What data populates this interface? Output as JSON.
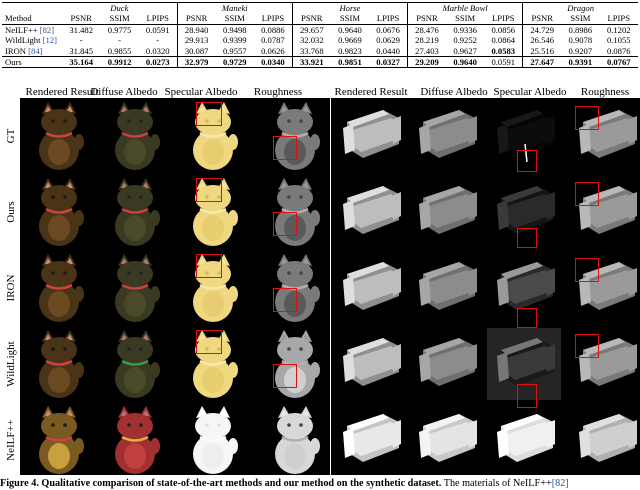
{
  "table": {
    "method_header": "Method",
    "scenes": [
      "Duck",
      "Maneki",
      "Horse",
      "Marble Bowl",
      "Dragon"
    ],
    "metrics": [
      "PSNR",
      "SSIM",
      "LPIPS"
    ],
    "rows": [
      {
        "method": "NeILF++",
        "ref": "[82]",
        "values": [
          "31.482",
          "0.9775",
          "0.0591",
          "28.940",
          "0.9498",
          "0.0886",
          "29.657",
          "0.9640",
          "0.0676",
          "28.476",
          "0.9336",
          "0.0856",
          "24.729",
          "0.8986",
          "0.1202"
        ]
      },
      {
        "method": "WildLight",
        "ref": "[12]",
        "values": [
          "-",
          "-",
          "-",
          "29.913",
          "0.9399",
          "0.0787",
          "32.032",
          "0.9669",
          "0.0629",
          "28.219",
          "0.9252",
          "0.0864",
          "26.546",
          "0.9078",
          "0.1055"
        ]
      },
      {
        "method": "IRON",
        "ref": "[84]",
        "values": [
          "31.845",
          "0.9855",
          "0.0320",
          "30.087",
          "0.9557",
          "0.0626",
          "33.768",
          "0.9823",
          "0.0440",
          "27.403",
          "0.9627",
          "0.0583",
          "25.516",
          "0.9207",
          "0.0876"
        ]
      },
      {
        "method": "Ours",
        "ref": "",
        "values": [
          "35.164",
          "0.9912",
          "0.0273",
          "32.979",
          "0.9729",
          "0.0340",
          "33.921",
          "0.9851",
          "0.0327",
          "29.209",
          "0.9640",
          "0.0591",
          "27.647",
          "0.9391",
          "0.0767"
        ]
      }
    ],
    "bold": [
      [
        3,
        0
      ],
      [
        3,
        1
      ],
      [
        3,
        2
      ],
      [
        3,
        3
      ],
      [
        3,
        4
      ],
      [
        3,
        5
      ],
      [
        3,
        6
      ],
      [
        3,
        7
      ],
      [
        3,
        8
      ],
      [
        3,
        9
      ],
      [
        3,
        10
      ],
      [
        2,
        11
      ],
      [
        3,
        12
      ],
      [
        3,
        13
      ],
      [
        3,
        14
      ]
    ]
  },
  "figure": {
    "column_headers": [
      "Rendered Result",
      "Diffuse Albedo",
      "Specular Albedo",
      "Roughness"
    ],
    "row_labels": [
      "GT",
      "Ours",
      "IRON",
      "WildLight",
      "NeILF++"
    ]
  },
  "caption": {
    "prefix": "Figure 4.",
    "bold_text": "Qualitative comparison of state-of-the-art methods and our method on the synthetic dataset.",
    "rest": "The materials of NeILF++",
    "ref": "[82]"
  },
  "colors": {
    "ref": "#2b54a8",
    "highlight_box": "#e01010",
    "panel_bg": "#000000"
  }
}
